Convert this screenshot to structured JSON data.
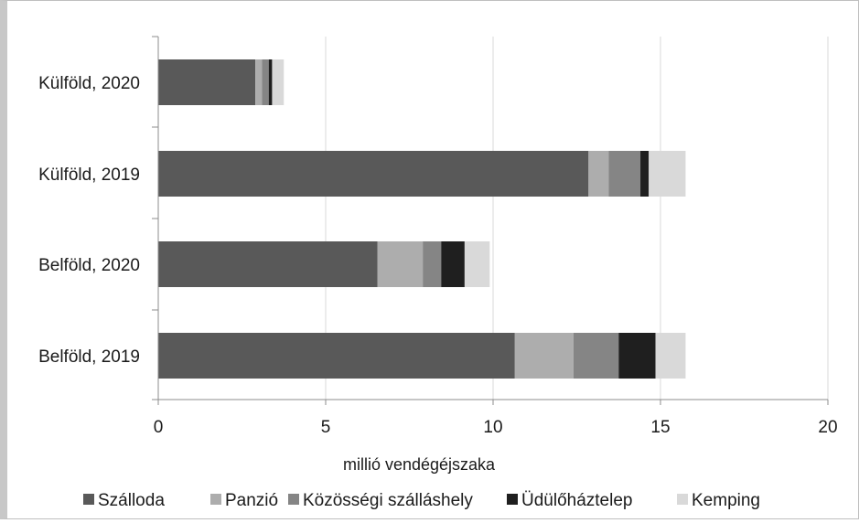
{
  "chart_data": {
    "type": "bar",
    "orientation": "horizontal",
    "stacked": true,
    "categories": [
      "Belföld, 2019",
      "Belföld, 2020",
      "Külföld, 2019",
      "Külföld, 2020"
    ],
    "series": [
      {
        "name": "Szálloda",
        "color": "#595959",
        "values": [
          10.65,
          6.55,
          12.85,
          2.9
        ]
      },
      {
        "name": "Panzió",
        "color": "#adadad",
        "values": [
          1.75,
          1.35,
          0.6,
          0.2
        ]
      },
      {
        "name": "Közösségi szálláshely",
        "color": "#858585",
        "values": [
          1.35,
          0.55,
          0.95,
          0.2
        ]
      },
      {
        "name": "Üdülőháztelep",
        "color": "#1f1f1f",
        "values": [
          1.1,
          0.7,
          0.25,
          0.1
        ]
      },
      {
        "name": "Kemping",
        "color": "#d9d9d9",
        "values": [
          0.9,
          0.75,
          1.1,
          0.35
        ]
      }
    ],
    "xlabel": "millió vendégéjszaka",
    "xlim": [
      0,
      20
    ],
    "xticks": [
      "0",
      "5",
      "10",
      "15",
      "20"
    ],
    "grid": true,
    "legend_position": "bottom"
  }
}
